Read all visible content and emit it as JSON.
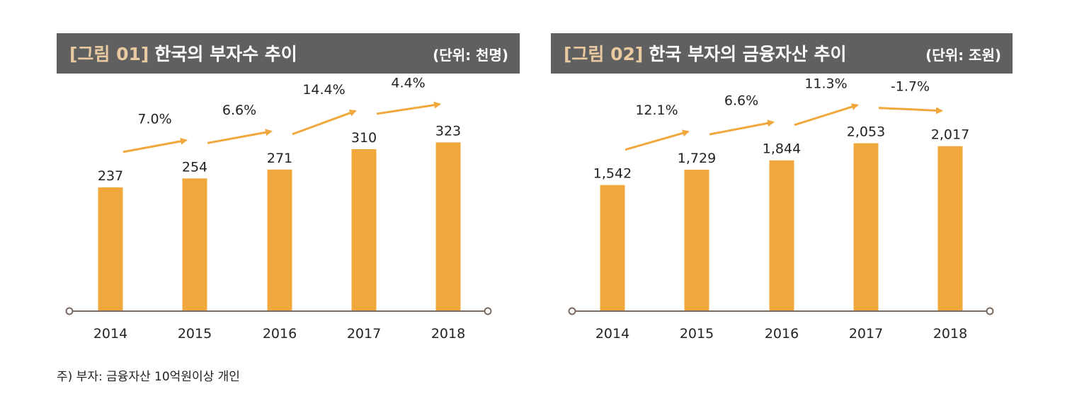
{
  "charts": [
    {
      "fig_no": "[그림 01]",
      "title": "한국의 부자수 추이",
      "unit": "(단위: 천명)"
    },
    {
      "fig_no": "[그림 02]",
      "title": "한국 부자의 금융자산 추이",
      "unit": "(단위: 조원)"
    }
  ],
  "footnote": "주) 부자: 금융자산 10억원이상 개인",
  "colors": {
    "bar": "#f0a83c",
    "arrow": "#f0a83c",
    "axis": "#7a6a60",
    "header_bg": "#606060",
    "fig_no": "#e8c9a0"
  },
  "chart_data": [
    {
      "type": "bar",
      "categories": [
        "2014",
        "2015",
        "2016",
        "2017",
        "2018"
      ],
      "values": [
        237,
        254,
        271,
        310,
        323
      ],
      "value_labels": [
        "237",
        "254",
        "271",
        "310",
        "323"
      ],
      "growth_labels": [
        "7.0%",
        "6.6%",
        "14.4%",
        "4.4%"
      ],
      "ylim": [
        0,
        360
      ]
    },
    {
      "type": "bar",
      "categories": [
        "2014",
        "2015",
        "2016",
        "2017",
        "2018"
      ],
      "values": [
        1542,
        1729,
        1844,
        2053,
        2017
      ],
      "value_labels": [
        "1,542",
        "1,729",
        "1,844",
        "2,053",
        "2,017"
      ],
      "growth_labels": [
        "12.1%",
        "6.6%",
        "11.3%",
        "-1.7%"
      ],
      "ylim": [
        0,
        2300
      ]
    }
  ]
}
